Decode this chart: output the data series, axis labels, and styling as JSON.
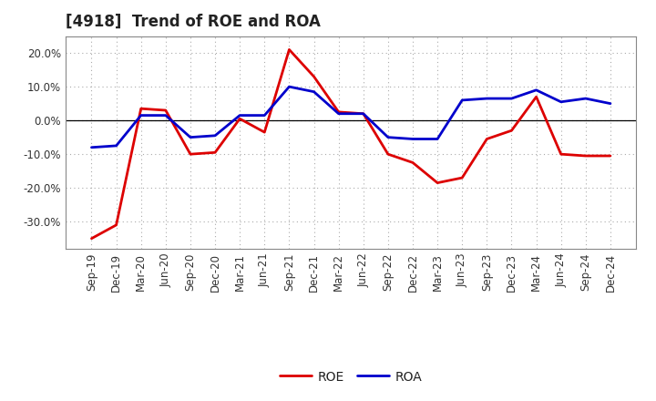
{
  "title": "[4918]  Trend of ROE and ROA",
  "labels": [
    "Sep-19",
    "Dec-19",
    "Mar-20",
    "Jun-20",
    "Sep-20",
    "Dec-20",
    "Mar-21",
    "Jun-21",
    "Sep-21",
    "Dec-21",
    "Mar-22",
    "Jun-22",
    "Sep-22",
    "Dec-22",
    "Mar-23",
    "Jun-23",
    "Sep-23",
    "Dec-23",
    "Mar-24",
    "Jun-24",
    "Sep-24",
    "Dec-24"
  ],
  "ROE": [
    -35.0,
    -31.0,
    3.5,
    3.0,
    -10.0,
    -9.5,
    0.5,
    -3.5,
    21.0,
    13.0,
    2.5,
    2.0,
    -10.0,
    -12.5,
    -18.5,
    -17.0,
    -5.5,
    -3.0,
    7.0,
    -10.0,
    -10.5,
    -10.5
  ],
  "ROA": [
    -8.0,
    -7.5,
    1.5,
    1.5,
    -5.0,
    -4.5,
    1.5,
    1.5,
    10.0,
    8.5,
    2.0,
    2.0,
    -5.0,
    -5.5,
    -5.5,
    6.0,
    6.5,
    6.5,
    9.0,
    5.5,
    6.5,
    5.0
  ],
  "ROE_color": "#dd0000",
  "ROA_color": "#0000cc",
  "background_color": "#ffffff",
  "plot_bg_color": "#ffffff",
  "grid_color": "#aaaaaa",
  "ylim": [
    -38,
    25
  ],
  "yticks": [
    -30.0,
    -20.0,
    -10.0,
    0.0,
    10.0,
    20.0
  ],
  "ytick_labels": [
    "-30.0%",
    "-20.0%",
    "-10.0%",
    "0.0%",
    "10.0%",
    "20.0%"
  ],
  "linewidth": 2.0,
  "title_fontsize": 12,
  "tick_fontsize": 8.5,
  "legend_fontsize": 10
}
